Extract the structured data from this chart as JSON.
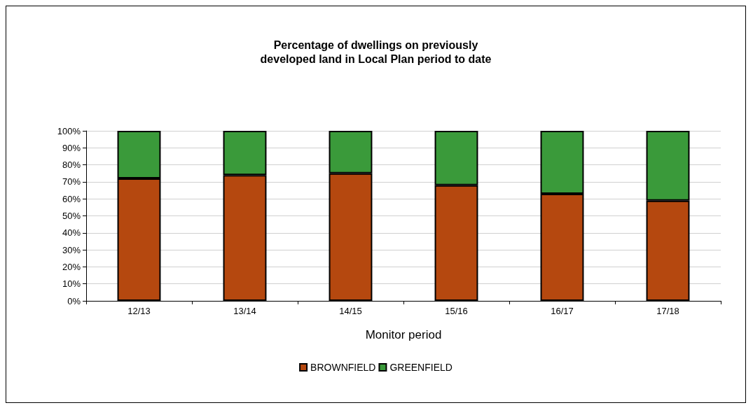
{
  "chart_data": {
    "type": "bar",
    "title": "Percentage of dwellings on previously\ndeveloped land in Local Plan period to date",
    "xlabel": "Monitor period",
    "categories": [
      "12/13",
      "13/14",
      "14/15",
      "15/16",
      "16/17",
      "17/18"
    ],
    "stacked": true,
    "series": [
      {
        "name": "BROWNFIELD",
        "color": "#b5480f",
        "values": [
          72,
          74,
          75,
          68,
          63,
          59
        ]
      },
      {
        "name": "GREENFIELD",
        "color": "#3a9a3a",
        "values": [
          28,
          26,
          25,
          32,
          37,
          41
        ]
      }
    ],
    "ylim": [
      0,
      100
    ],
    "yticks": [
      {
        "value": 0,
        "label": "0%"
      },
      {
        "value": 10,
        "label": "10%"
      },
      {
        "value": 20,
        "label": "20%"
      },
      {
        "value": 30,
        "label": "30%"
      },
      {
        "value": 40,
        "label": "40%"
      },
      {
        "value": 50,
        "label": "50%"
      },
      {
        "value": 60,
        "label": "60%"
      },
      {
        "value": 70,
        "label": "70%"
      },
      {
        "value": 80,
        "label": "80%"
      },
      {
        "value": 90,
        "label": "90%"
      },
      {
        "value": 100,
        "label": "100%"
      }
    ],
    "grid": "y",
    "legend": "bottom"
  }
}
